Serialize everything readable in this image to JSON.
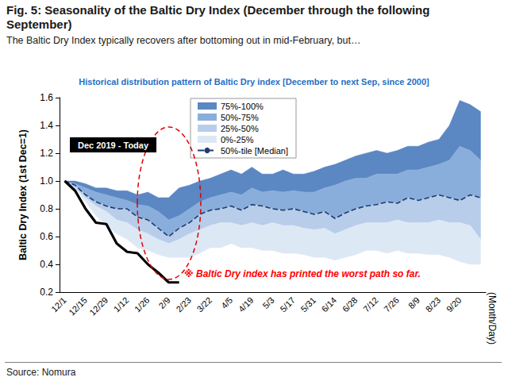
{
  "chart_data": {
    "type": "line",
    "title": "Fig. 5: Seasonality of the Baltic Dry Index (December through the following September)",
    "subtitle": "The Baltic Dry Index typically recovers after bottoming out in mid-February, but…",
    "chart_title": "Historical distribution pattern of Baltic Dry index [December to next Sep, since 2000]",
    "y_label": "Baltic Dry Index (1st Dec=1)",
    "x_label": "(Month/Day)",
    "source": "Source: Nomura",
    "annotations": [
      "Dec 2019 - Today",
      "※ Baltic Dry index has printed the worst path so far."
    ],
    "categories": [
      "12/1",
      null,
      "12/15",
      null,
      "12/29",
      null,
      "1/12",
      null,
      "1/26",
      null,
      "2/9",
      null,
      "2/23",
      null,
      "3/22",
      null,
      "4/5",
      null,
      "4/19",
      null,
      "5/3",
      null,
      "5/17",
      null,
      "5/31",
      null,
      "6/14",
      null,
      "6/28",
      null,
      "7/12",
      null,
      "7/26",
      null,
      "8/9",
      null,
      "8/23",
      null,
      "9/20",
      null,
      null
    ],
    "ylim": [
      0.2,
      1.6
    ],
    "yticks": [
      0.2,
      0.4,
      0.6,
      0.8,
      {
        "value": 1,
        "label": "1.0"
      },
      1.2,
      1.4,
      1.6
    ],
    "grid": false,
    "legend": "top",
    "series": [
      {
        "name": "75%-100%",
        "type": "area",
        "color": "#5b87c3",
        "low": [
          1.0,
          0.98,
          0.95,
          0.92,
          0.9,
          0.88,
          0.86,
          0.83,
          0.82,
          0.78,
          0.72,
          0.75,
          0.8,
          0.85,
          0.88,
          0.9,
          0.92,
          0.9,
          0.95,
          0.92,
          0.93,
          0.92,
          0.93,
          0.92,
          0.92,
          0.95,
          0.97,
          1.0,
          1.02,
          1.02,
          1.05,
          1.05,
          1.05,
          1.08,
          1.08,
          1.1,
          1.12,
          1.15,
          1.25,
          1.22,
          1.15
        ],
        "high": [
          1.0,
          1.0,
          0.98,
          0.95,
          0.95,
          0.93,
          0.93,
          0.9,
          0.92,
          0.88,
          0.88,
          0.95,
          0.97,
          1.0,
          1.02,
          1.05,
          1.08,
          1.05,
          1.1,
          1.05,
          1.05,
          1.08,
          1.05,
          1.05,
          1.07,
          1.1,
          1.12,
          1.15,
          1.18,
          1.2,
          1.22,
          1.2,
          1.22,
          1.25,
          1.25,
          1.28,
          1.3,
          1.4,
          1.58,
          1.55,
          1.5
        ]
      },
      {
        "name": "50%-75%",
        "type": "area",
        "color": "#8aaedb",
        "low": [
          1.0,
          0.97,
          0.9,
          0.85,
          0.82,
          0.8,
          0.8,
          0.74,
          0.72,
          0.66,
          0.6,
          0.66,
          0.7,
          0.76,
          0.79,
          0.8,
          0.82,
          0.79,
          0.83,
          0.82,
          0.8,
          0.79,
          0.8,
          0.78,
          0.76,
          0.78,
          0.73,
          0.77,
          0.8,
          0.82,
          0.83,
          0.85,
          0.84,
          0.88,
          0.86,
          0.88,
          0.9,
          0.88,
          0.86,
          0.9,
          0.88
        ],
        "high": [
          1.0,
          0.98,
          0.95,
          0.92,
          0.9,
          0.88,
          0.86,
          0.83,
          0.82,
          0.78,
          0.72,
          0.75,
          0.8,
          0.85,
          0.88,
          0.9,
          0.92,
          0.9,
          0.95,
          0.92,
          0.93,
          0.92,
          0.93,
          0.92,
          0.92,
          0.95,
          0.97,
          1.0,
          1.02,
          1.02,
          1.05,
          1.05,
          1.05,
          1.08,
          1.08,
          1.1,
          1.12,
          1.15,
          1.25,
          1.22,
          1.15
        ]
      },
      {
        "name": "25%-50%",
        "type": "area",
        "color": "#b7cdea",
        "low": [
          1.0,
          0.95,
          0.88,
          0.82,
          0.78,
          0.72,
          0.7,
          0.65,
          0.62,
          0.58,
          0.55,
          0.58,
          0.62,
          0.65,
          0.68,
          0.7,
          0.7,
          0.68,
          0.7,
          0.68,
          0.7,
          0.68,
          0.68,
          0.66,
          0.65,
          0.66,
          0.62,
          0.65,
          0.68,
          0.7,
          0.7,
          0.7,
          0.72,
          0.7,
          0.7,
          0.7,
          0.72,
          0.7,
          0.7,
          0.68,
          0.58
        ],
        "high": [
          1.0,
          0.97,
          0.9,
          0.85,
          0.82,
          0.8,
          0.8,
          0.74,
          0.72,
          0.66,
          0.6,
          0.66,
          0.7,
          0.76,
          0.79,
          0.8,
          0.82,
          0.79,
          0.83,
          0.82,
          0.8,
          0.79,
          0.8,
          0.78,
          0.76,
          0.78,
          0.73,
          0.77,
          0.8,
          0.82,
          0.83,
          0.85,
          0.84,
          0.88,
          0.86,
          0.88,
          0.9,
          0.88,
          0.86,
          0.9,
          0.88
        ]
      },
      {
        "name": "0%-25%",
        "type": "area",
        "color": "#dde8f5",
        "low": [
          1.0,
          0.95,
          0.85,
          0.75,
          0.68,
          0.62,
          0.58,
          0.52,
          0.5,
          0.47,
          0.45,
          0.45,
          0.45,
          0.48,
          0.52,
          0.52,
          0.55,
          0.52,
          0.52,
          0.5,
          0.5,
          0.48,
          0.48,
          0.47,
          0.45,
          0.45,
          0.43,
          0.45,
          0.47,
          0.5,
          0.5,
          0.48,
          0.5,
          0.48,
          0.48,
          0.47,
          0.47,
          0.45,
          0.42,
          0.4,
          0.4
        ],
        "high": [
          1.0,
          0.95,
          0.88,
          0.82,
          0.78,
          0.72,
          0.7,
          0.65,
          0.62,
          0.58,
          0.55,
          0.58,
          0.62,
          0.65,
          0.68,
          0.7,
          0.7,
          0.68,
          0.7,
          0.68,
          0.7,
          0.68,
          0.68,
          0.66,
          0.65,
          0.66,
          0.62,
          0.65,
          0.68,
          0.7,
          0.7,
          0.7,
          0.72,
          0.7,
          0.7,
          0.7,
          0.72,
          0.7,
          0.7,
          0.68,
          0.58
        ]
      },
      {
        "name": "50%-tile [Median]",
        "type": "line",
        "line_style": "dashed",
        "color": "#1f3a6e",
        "values": [
          1.0,
          0.97,
          0.9,
          0.85,
          0.82,
          0.8,
          0.8,
          0.74,
          0.72,
          0.66,
          0.6,
          0.66,
          0.7,
          0.76,
          0.79,
          0.8,
          0.82,
          0.79,
          0.83,
          0.82,
          0.8,
          0.79,
          0.8,
          0.78,
          0.76,
          0.78,
          0.73,
          0.77,
          0.8,
          0.82,
          0.83,
          0.85,
          0.84,
          0.88,
          0.86,
          0.88,
          0.9,
          0.88,
          0.86,
          0.9,
          0.88
        ]
      },
      {
        "type": "line",
        "line_style": "solid",
        "color": "#000000",
        "values": [
          1.0,
          0.93,
          0.8,
          0.7,
          0.69,
          0.55,
          0.49,
          0.48,
          0.4,
          0.34,
          0.27,
          0.27,
          null,
          null,
          null,
          null,
          null,
          null,
          null,
          null,
          null,
          null,
          null,
          null,
          null,
          null,
          null,
          null,
          null,
          null,
          null,
          null,
          null,
          null,
          null,
          null,
          null,
          null,
          null,
          null,
          null
        ]
      }
    ]
  }
}
